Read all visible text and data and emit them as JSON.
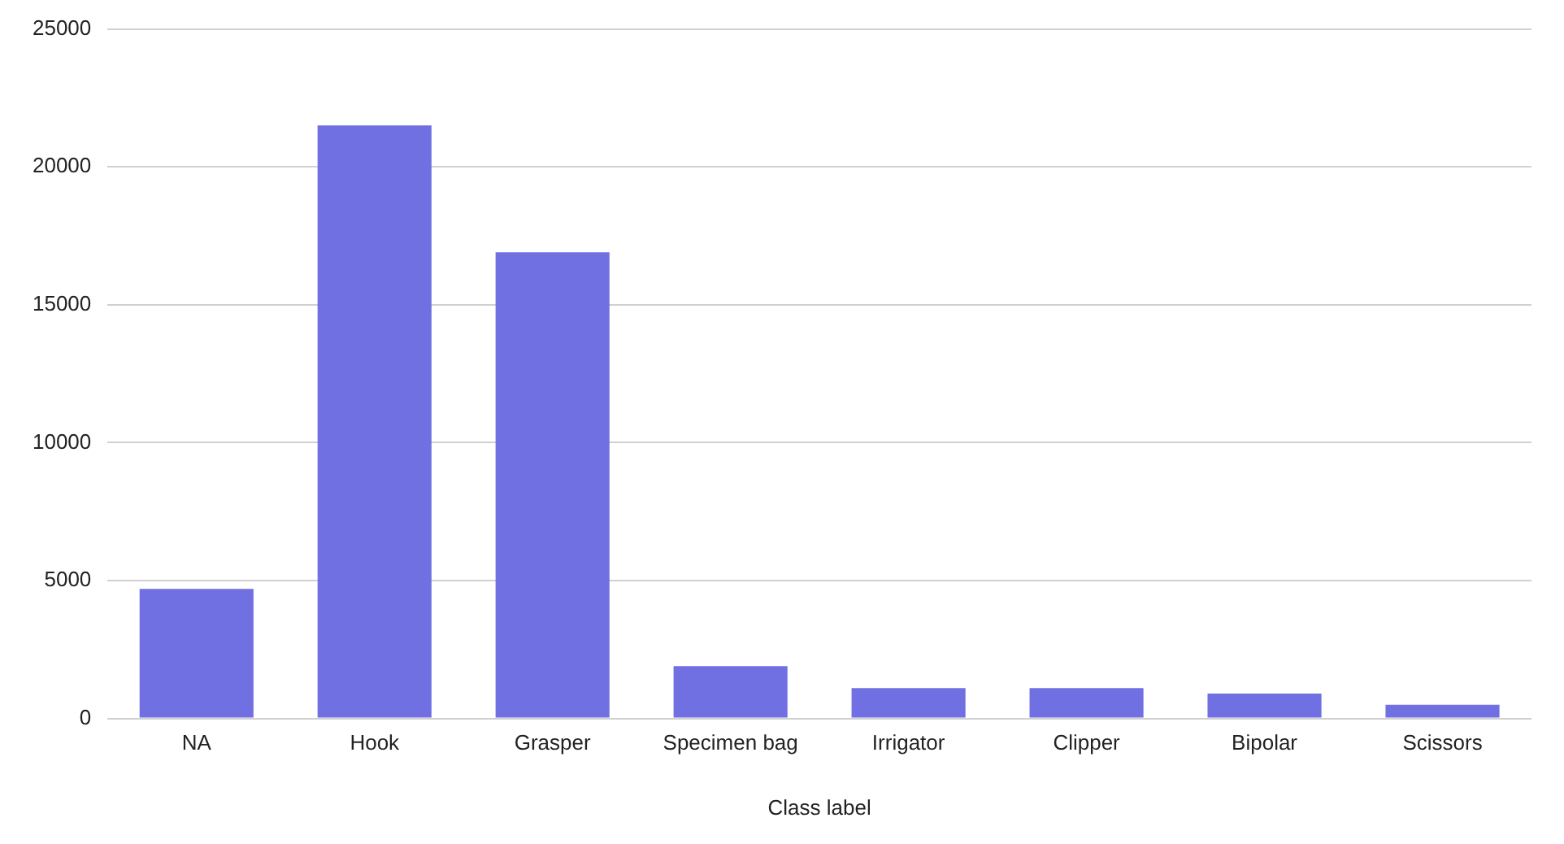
{
  "chart_data": {
    "type": "bar",
    "xlabel": "Class label",
    "categories": [
      "NA",
      "Hook",
      "Grasper",
      "Specimen bag",
      "Irrigator",
      "Clipper",
      "Bipolar",
      "Scissors"
    ],
    "values": [
      4700,
      21500,
      16900,
      1900,
      1100,
      1100,
      900,
      500
    ],
    "color": "#7070e2",
    "ylim": [
      0,
      25000
    ],
    "yticks": [
      0,
      5000,
      10000,
      15000,
      20000,
      25000
    ],
    "grid": "y"
  }
}
